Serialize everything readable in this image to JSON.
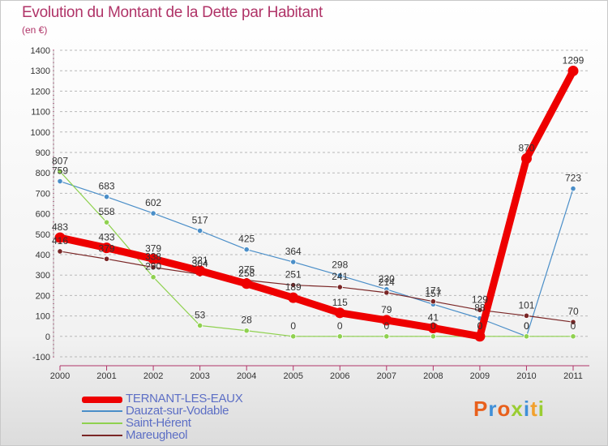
{
  "header": {
    "title": "Evolution du Montant de la Dette par Habitant",
    "unit": "(en €)"
  },
  "logo": {
    "text": "Proxiti",
    "colors": [
      "#e8601c",
      "#3f8fd8",
      "#e8601c",
      "#9acd32",
      "#3f8fd8",
      "#f2a02c",
      "#9acd32"
    ]
  },
  "chart_data": {
    "type": "line",
    "x": [
      "2000",
      "2001",
      "2002",
      "2003",
      "2004",
      "2005",
      "2006",
      "2007",
      "2008",
      "2009",
      "2010",
      "2011"
    ],
    "ylim": [
      -100,
      1400
    ],
    "yticks": [
      -100,
      0,
      100,
      200,
      300,
      400,
      500,
      600,
      700,
      800,
      900,
      1000,
      1100,
      1200,
      1300,
      1400
    ],
    "grid": "horizontal dashed",
    "legend_position": "bottom-left",
    "series": [
      {
        "name": "TERNANT-LES-EAUX",
        "color": "#ee0000",
        "values": [
          483,
          433,
          379,
          321,
          258,
          189,
          115,
          79,
          41,
          0,
          870,
          1299
        ],
        "labels": [
          "483",
          "433",
          "379",
          "321",
          "258",
          "189",
          "115",
          "79",
          "41",
          "0",
          "870",
          "1299"
        ]
      },
      {
        "name": "Dauzat-sur-Vodable",
        "color": "#4a8ec8",
        "values": [
          759,
          683,
          602,
          517,
          425,
          364,
          298,
          230,
          157,
          88,
          0,
          723
        ],
        "labels": [
          "759",
          "683",
          "602",
          "517",
          "425",
          "364",
          "298",
          "230",
          "157",
          "88",
          "0",
          "723"
        ]
      },
      {
        "name": "Saint-Hérent",
        "color": "#8fd14f",
        "values": [
          807,
          558,
          290,
          53,
          28,
          0,
          0,
          0,
          0,
          0,
          0,
          0
        ],
        "labels": [
          "807",
          "558",
          "290",
          "53",
          "28",
          "0",
          "0",
          "0",
          "0",
          "0",
          "0",
          "0"
        ]
      },
      {
        "name": "Mareugheol",
        "color": "#7a2626",
        "values": [
          416,
          379,
          338,
          304,
          275,
          251,
          241,
          214,
          171,
          129,
          101,
          70
        ],
        "labels": [
          "416",
          "379",
          "338",
          "304",
          "275",
          "251",
          "241",
          "214",
          "171",
          "129",
          "101",
          "70"
        ]
      }
    ]
  }
}
